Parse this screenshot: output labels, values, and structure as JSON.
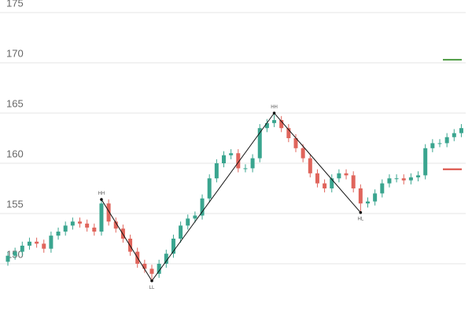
{
  "chart_data": {
    "type": "candlestick",
    "ylim": [
      145,
      176.25
    ],
    "yticks": [
      150,
      155,
      160,
      165,
      170,
      175
    ],
    "grid": true,
    "up_color": "#3aa58f",
    "down_color": "#e0655c",
    "open": [
      150.2,
      150.8,
      151.2,
      151.8,
      152.2,
      152.0,
      151.5,
      152.8,
      153.2,
      153.8,
      154.2,
      154.0,
      153.6,
      153.2,
      156.0,
      154.2,
      153.5,
      152.5,
      151.2,
      150.0,
      149.5,
      149.0,
      150.0,
      151.0,
      152.5,
      153.8,
      154.5,
      154.8,
      156.5,
      158.5,
      160.0,
      160.8,
      161.0,
      159.5,
      159.5,
      160.5,
      163.5,
      164.0,
      164.3,
      163.5,
      162.5,
      161.5,
      160.5,
      159.0,
      158.0,
      157.5,
      158.5,
      159.0,
      158.8,
      157.5,
      156.0,
      156.2,
      157.0,
      158.0,
      158.5,
      158.5,
      158.3,
      158.6,
      158.8,
      161.5,
      162.0,
      162.0,
      162.6,
      163.0
    ],
    "high": [
      151.2,
      151.6,
      152.2,
      152.6,
      152.6,
      152.4,
      153.2,
      153.6,
      154.2,
      154.6,
      154.6,
      154.4,
      154.0,
      156.4,
      156.4,
      154.6,
      153.9,
      152.9,
      151.6,
      150.4,
      149.9,
      150.4,
      151.4,
      152.9,
      154.2,
      154.9,
      155.2,
      156.9,
      158.9,
      160.4,
      161.2,
      161.4,
      161.4,
      159.9,
      160.9,
      163.9,
      164.4,
      165.0,
      164.7,
      163.9,
      162.9,
      161.9,
      160.9,
      159.4,
      158.4,
      158.9,
      159.4,
      159.4,
      159.2,
      157.9,
      156.6,
      157.4,
      158.4,
      158.9,
      158.9,
      158.9,
      159.0,
      159.2,
      161.9,
      162.4,
      162.4,
      163.0,
      163.4,
      163.9
    ],
    "low": [
      149.8,
      150.4,
      150.8,
      151.4,
      151.6,
      151.1,
      151.1,
      152.4,
      152.8,
      153.4,
      153.6,
      153.2,
      152.8,
      152.8,
      153.8,
      153.1,
      152.1,
      150.8,
      149.6,
      149.1,
      148.3,
      148.6,
      149.6,
      150.6,
      152.1,
      153.4,
      154.1,
      154.4,
      156.1,
      158.1,
      159.6,
      160.4,
      159.1,
      159.1,
      159.1,
      160.1,
      163.1,
      163.6,
      163.1,
      162.1,
      161.1,
      160.1,
      158.6,
      157.6,
      157.1,
      157.1,
      158.1,
      158.4,
      157.1,
      155.1,
      155.6,
      155.8,
      156.6,
      157.6,
      158.1,
      157.9,
      157.9,
      158.2,
      158.4,
      161.1,
      161.6,
      161.6,
      162.2,
      162.6
    ],
    "close": [
      150.8,
      151.2,
      151.8,
      152.2,
      152.0,
      151.5,
      152.8,
      153.2,
      153.8,
      154.2,
      154.0,
      153.6,
      153.2,
      156.0,
      154.2,
      153.5,
      152.5,
      151.2,
      150.0,
      149.5,
      149.0,
      150.0,
      151.0,
      152.5,
      153.8,
      154.5,
      154.8,
      156.5,
      158.5,
      160.0,
      160.8,
      161.0,
      159.5,
      159.5,
      160.5,
      163.5,
      164.0,
      164.3,
      163.5,
      162.5,
      161.5,
      160.5,
      159.0,
      158.0,
      157.5,
      158.5,
      159.0,
      158.8,
      157.5,
      156.0,
      156.2,
      157.0,
      158.0,
      158.5,
      158.5,
      158.3,
      158.6,
      158.8,
      161.5,
      162.0,
      162.0,
      162.6,
      163.0,
      163.5
    ],
    "zigzag": [
      {
        "x": 13,
        "value": 156.4,
        "label": "HH"
      },
      {
        "x": 20,
        "value": 148.3,
        "label": "LL"
      },
      {
        "x": 37,
        "value": 165.0,
        "label": "HH"
      },
      {
        "x": 49,
        "value": 155.1,
        "label": "HL"
      }
    ],
    "levels": [
      {
        "value": 170.3,
        "color": "#4a9a3f"
      },
      {
        "value": 159.4,
        "color": "#d9453b"
      }
    ]
  }
}
